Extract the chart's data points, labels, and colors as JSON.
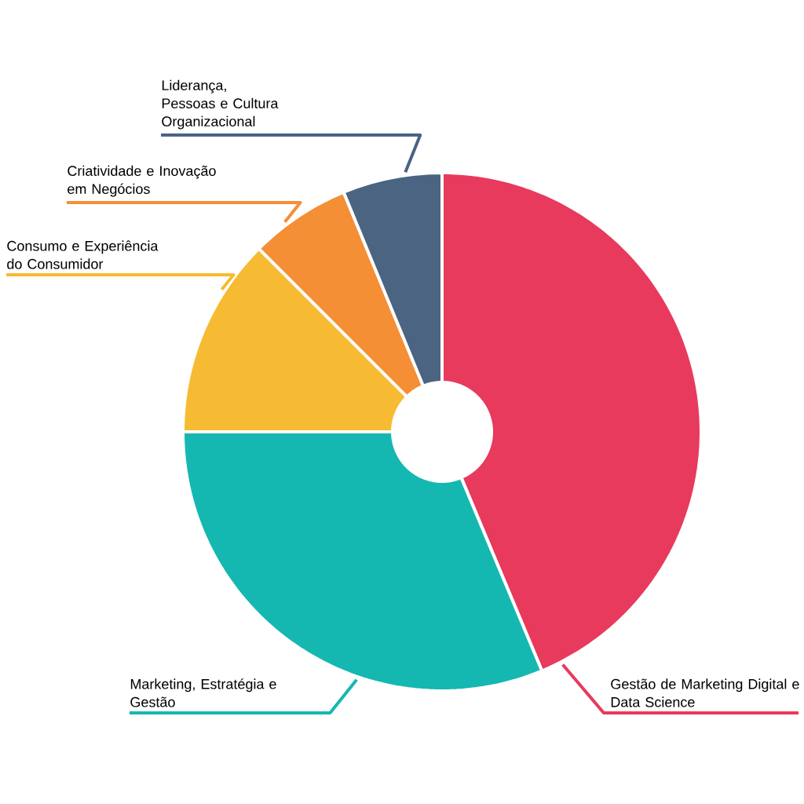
{
  "chart_data": {
    "type": "donut",
    "categories": [
      "Gestão de Marketing Digital e Data Science",
      "Marketing, Estratégia e Gestão",
      "Consumo e Experiência do Consumidor",
      "Criatividade e Inovação em Negócios",
      "Liderança, Pessoas e Cultura Organizacional"
    ],
    "values": [
      43.7,
      31.3,
      12.5,
      6.3,
      6.2
    ],
    "colors": [
      "#e83a5c",
      "#14b8b0",
      "#f6bb33",
      "#f58f35",
      "#4a6482"
    ]
  }
}
